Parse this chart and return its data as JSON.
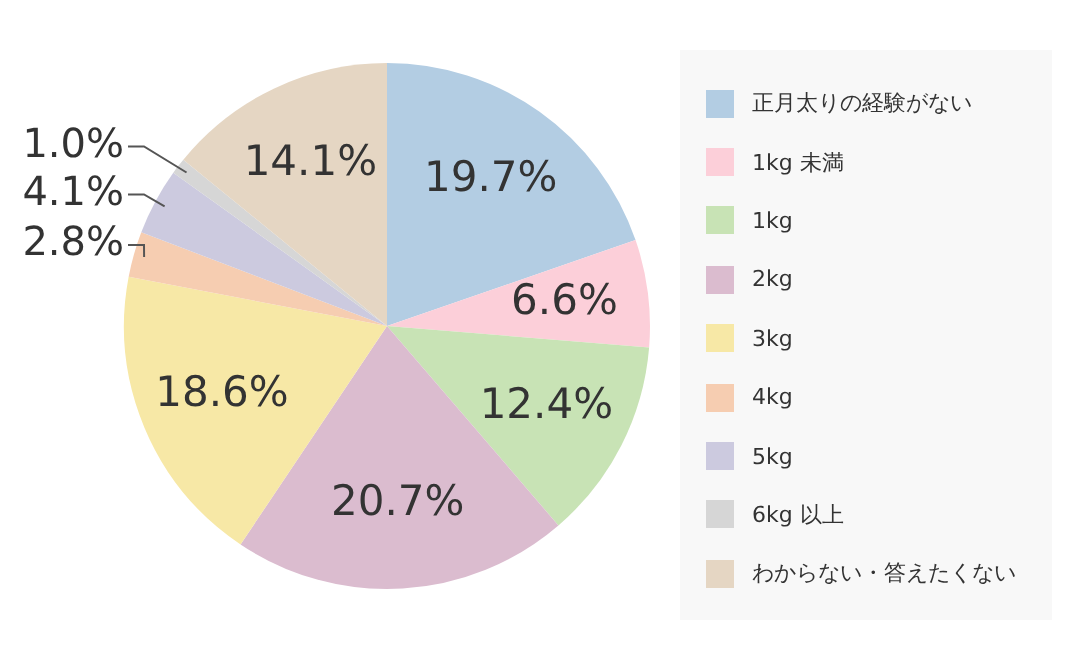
{
  "chart_data": {
    "type": "pie",
    "categories": [
      "正月太りの経験がない",
      "1kg 未満",
      "1kg",
      "2kg",
      "3kg",
      "4kg",
      "5kg",
      "6kg 以上",
      "わからない・答えたくない"
    ],
    "values": [
      19.7,
      6.6,
      12.4,
      20.7,
      18.6,
      2.8,
      4.1,
      1.0,
      14.1
    ],
    "colors": [
      "#b3cde3",
      "#fccfd9",
      "#c8e3b5",
      "#dbbccf",
      "#f7e8a6",
      "#f6cdb1",
      "#cccadf",
      "#d6d6d6",
      "#e5d6c3"
    ],
    "value_labels": [
      "19.7%",
      "6.6%",
      "12.4%",
      "20.7%",
      "18.6%",
      "2.8%",
      "4.1%",
      "1.0%",
      "14.1%"
    ],
    "legend": "right"
  }
}
